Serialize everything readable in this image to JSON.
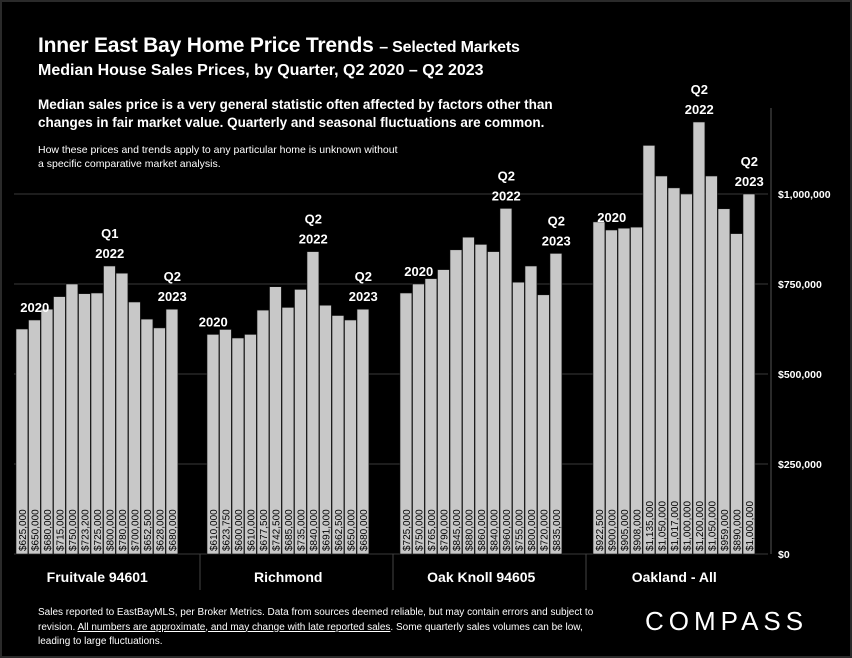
{
  "header": {
    "title_main": "Inner East Bay Home Price Trends",
    "title_sub": "– Selected Markets",
    "subtitle": "Median House Sales Prices, by Quarter, Q2 2020 – Q2 2023"
  },
  "notes": {
    "primary": "Median sales price is a very general statistic often affected by factors other than changes in fair market value. Quarterly and seasonal fluctuations are common.",
    "secondary": "How these prices and trends apply to any particular home is unknown without a specific comparative market analysis."
  },
  "footer": {
    "line1": "Sales reported to EastBayMLS, per Broker Metrics. Data from sources deemed reliable, but may contain errors and subject to revision. ",
    "underlined": "All numbers are approximate, and may change with late reported sales",
    "line3": ". Some quarterly sales volumes can be low, leading to large fluctuations."
  },
  "brand": {
    "logo_text": "COMPASS"
  },
  "chart_data": {
    "type": "bar",
    "y_ticks": [
      "$0",
      "$250,000",
      "$500,000",
      "$750,000",
      "$1,000,000"
    ],
    "y_tick_values": [
      0,
      250000,
      500000,
      750000,
      1000000
    ],
    "ylim": [
      0,
      1200000
    ],
    "grid": true,
    "bar_color": "#c8c8c8",
    "groups": [
      {
        "name": "Fruitvale 94601",
        "values": [
          625000,
          650000,
          680000,
          715000,
          750000,
          723200,
          725000,
          800000,
          780000,
          700000,
          652500,
          628000,
          680000
        ],
        "labels": [
          "$625,000",
          "$650,000",
          "$680,000",
          "$715,000",
          "$750,000",
          "$723,200",
          "$725,000",
          "$800,000",
          "$780,000",
          "$700,000",
          "$652,500",
          "$628,000",
          "$680,000"
        ],
        "annotations": [
          {
            "index": 1,
            "text": "2020"
          },
          {
            "index": 7,
            "text": "Q1 2022"
          },
          {
            "index": 12,
            "text": "Q2 2023"
          }
        ]
      },
      {
        "name": "Richmond",
        "values": [
          610000,
          623750,
          600000,
          610000,
          677500,
          742500,
          685000,
          735000,
          840000,
          691000,
          662500,
          650000,
          680000
        ],
        "labels": [
          "$610,000",
          "$623,750",
          "$600,000",
          "$610,000",
          "$677,500",
          "$742,500",
          "$685,000",
          "$735,000",
          "$840,000",
          "$691,000",
          "$662,500",
          "$650,000",
          "$680,000"
        ],
        "annotations": [
          {
            "index": 0,
            "text": "2020"
          },
          {
            "index": 8,
            "text": "Q2 2022"
          },
          {
            "index": 12,
            "text": "Q2 2023"
          }
        ]
      },
      {
        "name": "Oak Knoll 94605",
        "values": [
          725000,
          750000,
          765000,
          790000,
          845000,
          880000,
          860000,
          840000,
          960000,
          755000,
          800000,
          720000,
          835000
        ],
        "labels": [
          "$725,000",
          "$750,000",
          "$765,000",
          "$790,000",
          "$845,000",
          "$880,000",
          "$860,000",
          "$840,000",
          "$960,000",
          "$755,000",
          "$800,000",
          "$720,000",
          "$835,000"
        ],
        "annotations": [
          {
            "index": 1,
            "text": "2020"
          },
          {
            "index": 8,
            "text": "Q2 2022"
          },
          {
            "index": 12,
            "text": "Q2 2023"
          }
        ]
      },
      {
        "name": "Oakland - All",
        "values": [
          922500,
          900000,
          905000,
          908000,
          1135000,
          1050000,
          1017000,
          1000000,
          1200000,
          1050000,
          959000,
          890000,
          1000000
        ],
        "labels": [
          "$922,500",
          "$900,000",
          "$905,000",
          "$908,000",
          "$1,135,000",
          "$1,050,000",
          "$1,017,000",
          "$1,000,000",
          "$1,200,000",
          "$1,050,000",
          "$959,000",
          "$890,000",
          "$1,000,000"
        ],
        "annotations": [
          {
            "index": 1,
            "text": "2020"
          },
          {
            "index": 8,
            "text": "Q2 2022"
          },
          {
            "index": 12,
            "text": "Q2 2023"
          }
        ]
      }
    ]
  }
}
